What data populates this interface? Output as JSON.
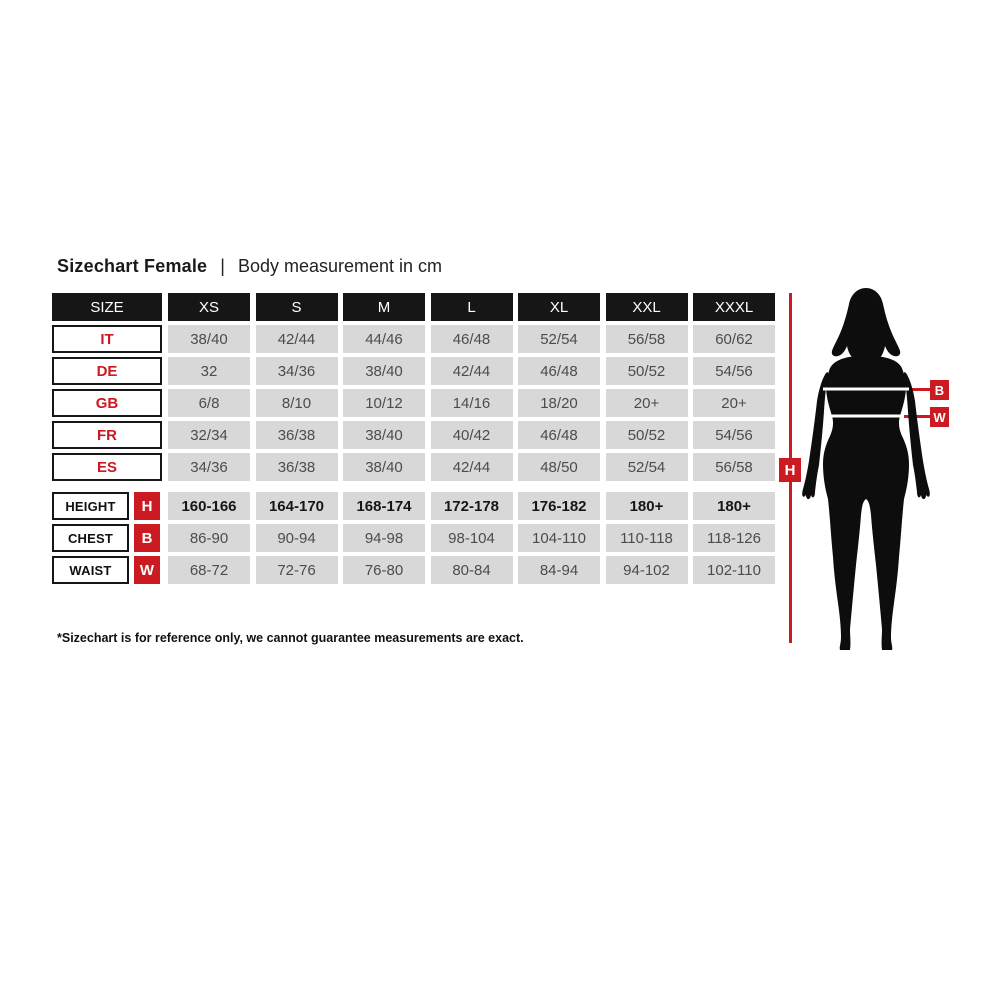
{
  "title": {
    "main": "Sizechart Female",
    "separator": "|",
    "subtitle": "Body measurement in cm"
  },
  "footnote": "*Sizechart is for reference only, we cannot guarantee measurements are exact.",
  "colors": {
    "red": "#cb1a21",
    "header_black": "#161616",
    "cell_gray": "#d8d8d8",
    "value_text": "#4c4c4c"
  },
  "figure": {
    "height_label": "H",
    "bust_label": "B",
    "waist_label": "W"
  },
  "table": {
    "header": [
      "SIZE",
      "XS",
      "S",
      "M",
      "L",
      "XL",
      "XXL",
      "XXXL"
    ],
    "region_rows": [
      {
        "label": "IT",
        "values": [
          "38/40",
          "42/44",
          "44/46",
          "46/48",
          "52/54",
          "56/58",
          "60/62"
        ]
      },
      {
        "label": "DE",
        "values": [
          "32",
          "34/36",
          "38/40",
          "42/44",
          "46/48",
          "50/52",
          "54/56"
        ]
      },
      {
        "label": "GB",
        "values": [
          "6/8",
          "8/10",
          "10/12",
          "14/16",
          "18/20",
          "20+",
          "20+"
        ]
      },
      {
        "label": "FR",
        "values": [
          "32/34",
          "36/38",
          "38/40",
          "40/42",
          "46/48",
          "50/52",
          "54/56"
        ]
      },
      {
        "label": "ES",
        "values": [
          "34/36",
          "36/38",
          "38/40",
          "42/44",
          "48/50",
          "52/54",
          "56/58"
        ]
      }
    ],
    "measure_rows": [
      {
        "label": "HEIGHT",
        "badge": "H",
        "bold": true,
        "values": [
          "160-166",
          "164-170",
          "168-174",
          "172-178",
          "176-182",
          "180+",
          "180+"
        ]
      },
      {
        "label": "CHEST",
        "badge": "B",
        "bold": false,
        "values": [
          "86-90",
          "90-94",
          "94-98",
          "98-104",
          "104-110",
          "110-118",
          "118-126"
        ]
      },
      {
        "label": "WAIST",
        "badge": "W",
        "bold": false,
        "values": [
          "68-72",
          "72-76",
          "76-80",
          "80-84",
          "84-94",
          "94-102",
          "102-110"
        ]
      }
    ]
  },
  "chart_data": {
    "type": "table",
    "title": "Sizechart Female | Body measurement in cm",
    "columns": [
      "SIZE",
      "XS",
      "S",
      "M",
      "L",
      "XL",
      "XXL",
      "XXXL"
    ],
    "rows": [
      [
        "IT",
        "38/40",
        "42/44",
        "44/46",
        "46/48",
        "52/54",
        "56/58",
        "60/62"
      ],
      [
        "DE",
        "32",
        "34/36",
        "38/40",
        "42/44",
        "46/48",
        "50/52",
        "54/56"
      ],
      [
        "GB",
        "6/8",
        "8/10",
        "10/12",
        "14/16",
        "18/20",
        "20+",
        "20+"
      ],
      [
        "FR",
        "32/34",
        "36/38",
        "38/40",
        "40/42",
        "46/48",
        "50/52",
        "54/56"
      ],
      [
        "ES",
        "34/36",
        "36/38",
        "38/40",
        "42/44",
        "48/50",
        "52/54",
        "56/58"
      ],
      [
        "HEIGHT",
        "160-166",
        "164-170",
        "168-174",
        "172-178",
        "176-182",
        "180+",
        "180+"
      ],
      [
        "CHEST",
        "86-90",
        "90-94",
        "94-98",
        "98-104",
        "104-110",
        "110-118",
        "118-126"
      ],
      [
        "WAIST",
        "68-72",
        "72-76",
        "76-80",
        "80-84",
        "84-94",
        "94-102",
        "102-110"
      ]
    ]
  }
}
